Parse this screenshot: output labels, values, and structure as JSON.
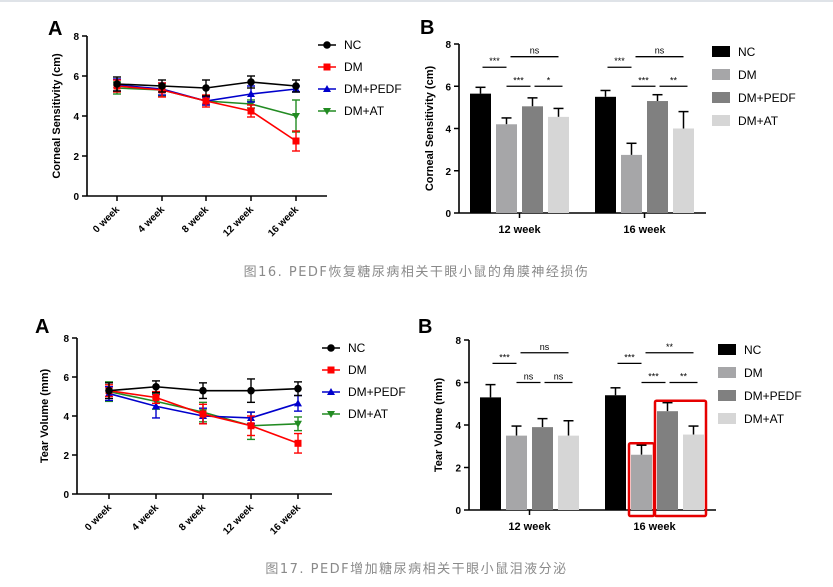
{
  "captions": {
    "fig16": "图16. PEDF恢复糖尿病相关干眼小鼠的角膜神经损伤",
    "fig17": "图17. PEDF增加糖尿病相关干眼小鼠泪液分泌"
  },
  "colors": {
    "NC": "#000000",
    "DM": "#ff0000",
    "DM+PEDF": "#0000cc",
    "DM+AT": "#228b22",
    "bar_NC": "#000000",
    "bar_DM": "#a6a6a8",
    "bar_DM+PEDF": "#808080",
    "bar_DM+AT": "#d6d6d6",
    "highlight": "#e60000"
  },
  "chart_data": [
    {
      "id": "fig16A",
      "type": "line",
      "panel_label": "A",
      "ylabel": "Corneal Sensitivity (cm)",
      "xlabel": "",
      "x": [
        "0 week",
        "4 week",
        "8 week",
        "12 week",
        "16 week"
      ],
      "ylim": [
        0,
        8
      ],
      "yticks": [
        0,
        2,
        4,
        6,
        8
      ],
      "legend_position": "right",
      "series": [
        {
          "name": "NC",
          "marker": "circle",
          "values": [
            5.6,
            5.5,
            5.4,
            5.7,
            5.5
          ],
          "errors": [
            0.35,
            0.3,
            0.4,
            0.3,
            0.3
          ]
        },
        {
          "name": "DM",
          "marker": "square",
          "values": [
            5.5,
            5.3,
            4.75,
            4.25,
            2.75
          ],
          "errors": [
            0.3,
            0.35,
            0.3,
            0.3,
            0.5
          ]
        },
        {
          "name": "DM+PEDF",
          "marker": "triangle-up",
          "values": [
            5.55,
            5.35,
            4.75,
            5.1,
            5.35
          ],
          "errors": [
            0.3,
            0.3,
            0.2,
            0.4,
            0.15
          ]
        },
        {
          "name": "DM+AT",
          "marker": "triangle-down",
          "values": [
            5.4,
            5.3,
            4.75,
            4.6,
            4.0
          ],
          "errors": [
            0.3,
            0.3,
            0.2,
            0.2,
            0.8
          ]
        }
      ]
    },
    {
      "id": "fig16B",
      "type": "bar",
      "panel_label": "B",
      "ylabel": "Corneal Sensitivity (cm)",
      "categories": [
        "12 week",
        "16 week"
      ],
      "ylim": [
        0,
        8
      ],
      "yticks": [
        0,
        2,
        4,
        6,
        8
      ],
      "legend_position": "right",
      "series": [
        {
          "name": "NC",
          "values": [
            5.65,
            5.5
          ],
          "errors": [
            0.3,
            0.3
          ]
        },
        {
          "name": "DM",
          "values": [
            4.2,
            2.75
          ],
          "errors": [
            0.3,
            0.55
          ]
        },
        {
          "name": "DM+PEDF",
          "values": [
            5.05,
            5.3
          ],
          "errors": [
            0.4,
            0.3
          ]
        },
        {
          "name": "DM+AT",
          "values": [
            4.55,
            4.0
          ],
          "errors": [
            0.4,
            0.8
          ]
        }
      ],
      "significance": [
        {
          "group": 0,
          "from": 0,
          "to": 1,
          "label": "***",
          "level": 1
        },
        {
          "group": 0,
          "from": 2,
          "to": 3,
          "label": "ns",
          "level": 2
        },
        {
          "group": 0,
          "from": 1,
          "to": 2,
          "label": "***",
          "level": 0
        },
        {
          "group": 0,
          "from": 2,
          "to": 3,
          "label": "*",
          "level": 0,
          "right": true
        },
        {
          "group": 1,
          "from": 0,
          "to": 1,
          "label": "***",
          "level": 1
        },
        {
          "group": 1,
          "from": 1,
          "to": 3,
          "label": "ns",
          "level": 2
        },
        {
          "group": 1,
          "from": 1,
          "to": 2,
          "label": "***",
          "level": 0
        },
        {
          "group": 1,
          "from": 2,
          "to": 3,
          "label": "**",
          "level": 0,
          "right": true
        }
      ],
      "highlights": []
    },
    {
      "id": "fig17A",
      "type": "line",
      "panel_label": "A",
      "ylabel": "Tear Volume (mm)",
      "xlabel": "",
      "x": [
        "0 week",
        "4 week",
        "8 week",
        "12 week",
        "16 week"
      ],
      "ylim": [
        0,
        8
      ],
      "yticks": [
        0,
        2,
        4,
        6,
        8
      ],
      "legend_position": "right",
      "series": [
        {
          "name": "NC",
          "marker": "circle",
          "values": [
            5.3,
            5.5,
            5.3,
            5.3,
            5.4
          ],
          "errors": [
            0.4,
            0.3,
            0.4,
            0.6,
            0.35
          ]
        },
        {
          "name": "DM",
          "marker": "square",
          "values": [
            5.3,
            4.95,
            4.1,
            3.5,
            2.6
          ],
          "errors": [
            0.3,
            0.3,
            0.5,
            0.5,
            0.5
          ]
        },
        {
          "name": "DM+PEDF",
          "marker": "triangle-up",
          "values": [
            5.15,
            4.5,
            4.0,
            3.9,
            4.65
          ],
          "errors": [
            0.35,
            0.6,
            0.4,
            0.3,
            0.4
          ]
        },
        {
          "name": "DM+AT",
          "marker": "triangle-down",
          "values": [
            5.25,
            4.75,
            4.2,
            3.5,
            3.6
          ],
          "errors": [
            0.5,
            0.4,
            0.5,
            0.7,
            0.35
          ]
        }
      ]
    },
    {
      "id": "fig17B",
      "type": "bar",
      "panel_label": "B",
      "ylabel": "Tear Volume (mm)",
      "categories": [
        "12 week",
        "16 week"
      ],
      "ylim": [
        0,
        8
      ],
      "yticks": [
        0,
        2,
        4,
        6,
        8
      ],
      "legend_position": "right",
      "series": [
        {
          "name": "NC",
          "values": [
            5.3,
            5.4
          ],
          "errors": [
            0.6,
            0.35
          ]
        },
        {
          "name": "DM",
          "values": [
            3.5,
            2.6
          ],
          "errors": [
            0.45,
            0.45
          ]
        },
        {
          "name": "DM+PEDF",
          "values": [
            3.9,
            4.65
          ],
          "errors": [
            0.4,
            0.4
          ]
        },
        {
          "name": "DM+AT",
          "values": [
            3.5,
            3.55
          ],
          "errors": [
            0.7,
            0.4
          ]
        }
      ],
      "significance": [
        {
          "group": 0,
          "from": 0,
          "to": 1,
          "label": "***",
          "level": 1
        },
        {
          "group": 0,
          "from": 1,
          "to": 3,
          "label": "ns",
          "level": 2
        },
        {
          "group": 0,
          "from": 1,
          "to": 2,
          "label": "ns",
          "level": 0
        },
        {
          "group": 0,
          "from": 2,
          "to": 3,
          "label": "ns",
          "level": 0,
          "right": true
        },
        {
          "group": 1,
          "from": 0,
          "to": 1,
          "label": "***",
          "level": 1
        },
        {
          "group": 1,
          "from": 1,
          "to": 3,
          "label": "**",
          "level": 2
        },
        {
          "group": 1,
          "from": 1,
          "to": 2,
          "label": "***",
          "level": 0
        },
        {
          "group": 1,
          "from": 2,
          "to": 3,
          "label": "**",
          "level": 0,
          "right": true
        }
      ],
      "highlights": [
        {
          "group": 1,
          "bars": [
            1
          ]
        },
        {
          "group": 1,
          "bars": [
            2,
            3
          ]
        }
      ]
    }
  ]
}
